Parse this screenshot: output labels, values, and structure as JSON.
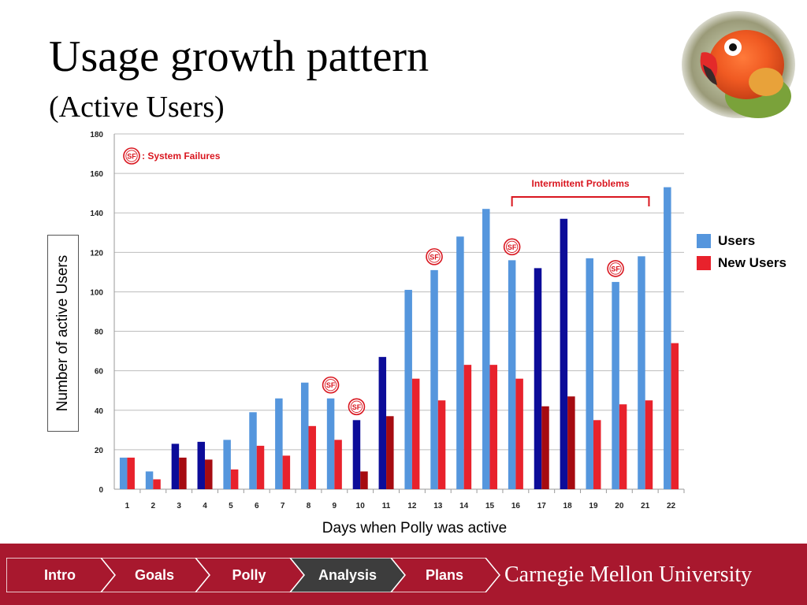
{
  "title": "Usage growth pattern",
  "subtitle": "(Active Users)",
  "colors": {
    "users": "#5596dd",
    "users_dark": "#0c0c99",
    "new_users": "#e8222c",
    "new_users_dark": "#a60b11",
    "annotation": "#d9161f",
    "footer": "#a8182e",
    "nav_active": "#3d3d3d"
  },
  "chart_data": {
    "type": "bar",
    "xlabel": "Days when Polly was active",
    "ylabel": "Number of active Users",
    "ylim": [
      0,
      180
    ],
    "yticks": [
      0,
      20,
      40,
      60,
      80,
      100,
      120,
      140,
      160,
      180
    ],
    "grid": true,
    "legend_position": "right",
    "categories": [
      "1",
      "2",
      "3",
      "4",
      "5",
      "6",
      "7",
      "8",
      "9",
      "10",
      "11",
      "12",
      "13",
      "14",
      "15",
      "16",
      "17",
      "18",
      "19",
      "20",
      "21",
      "22"
    ],
    "series": [
      {
        "name": "Users",
        "values": [
          16,
          9,
          23,
          24,
          25,
          39,
          46,
          54,
          46,
          35,
          67,
          101,
          111,
          128,
          142,
          116,
          112,
          137,
          117,
          105,
          118,
          153
        ]
      },
      {
        "name": "New Users",
        "values": [
          16,
          5,
          16,
          15,
          10,
          22,
          17,
          32,
          25,
          9,
          37,
          56,
          45,
          63,
          63,
          56,
          42,
          47,
          35,
          43,
          45,
          74
        ]
      }
    ],
    "dark_days": [
      "3",
      "4",
      "10",
      "11",
      "17",
      "18"
    ],
    "sf_marker_label": "SF",
    "sf_days": [
      "9",
      "10",
      "13",
      "16",
      "20"
    ],
    "sf_legend_text": ": System Failures",
    "intermittent_label": "Intermittent Problems",
    "intermittent_range": [
      "16",
      "21"
    ]
  },
  "nav": {
    "items": [
      {
        "label": "Intro",
        "active": false
      },
      {
        "label": "Goals",
        "active": false
      },
      {
        "label": "Polly",
        "active": false
      },
      {
        "label": "Analysis",
        "active": true
      },
      {
        "label": "Plans",
        "active": false
      }
    ]
  },
  "brand": "Carnegie Mellon University",
  "icons": {
    "photo": "lovebird-parrot-photo"
  }
}
